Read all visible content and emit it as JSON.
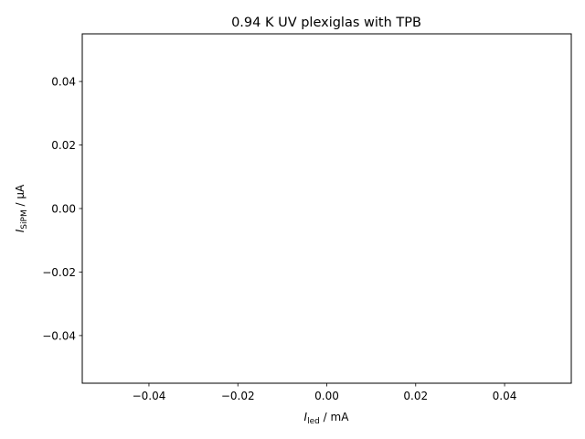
{
  "chart_data": {
    "type": "scatter",
    "title": "0.94 K UV plexiglas with TPB",
    "xlabel": {
      "base": "I",
      "sub": "led",
      "unit": " / mA"
    },
    "ylabel": {
      "base": "I",
      "sub": "SiPM",
      "unit": " / μA"
    },
    "xlim": [
      -0.055,
      0.055
    ],
    "ylim": [
      -0.055,
      0.055
    ],
    "xticks": [
      -0.04,
      -0.02,
      0.0,
      0.02,
      0.04
    ],
    "yticks": [
      -0.04,
      -0.02,
      0.0,
      0.02,
      0.04
    ],
    "xtick_labels": [
      "−0.04",
      "−0.02",
      "0.00",
      "0.02",
      "0.04"
    ],
    "ytick_labels": [
      "−0.04",
      "−0.02",
      "0.00",
      "0.02",
      "0.04"
    ],
    "grid": false,
    "series": []
  }
}
